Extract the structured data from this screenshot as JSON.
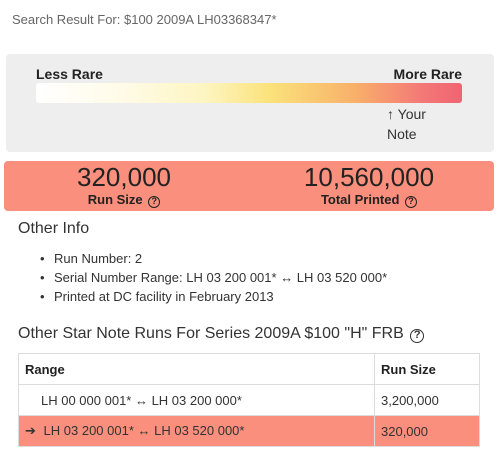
{
  "search": {
    "label": "Search Result For: $100 2009A LH03368347*"
  },
  "rarity": {
    "less_label": "Less Rare",
    "more_label": "More Rare",
    "your_note_arrow": "↑",
    "your_note_line1": "Your",
    "your_note_line2": "Note"
  },
  "stats": {
    "run_size_value": "320,000",
    "run_size_label": "Run Size",
    "total_printed_value": "10,560,000",
    "total_printed_label": "Total Printed",
    "help_glyph": "?"
  },
  "other_info": {
    "title": "Other Info",
    "items": [
      "Run Number: 2",
      "Serial Number Range: LH 03 200 001* ↔ LH 03 520 000*",
      "Printed at DC facility in February 2013"
    ]
  },
  "runs": {
    "title": "Other Star Note Runs For Series 2009A $100 \"H\" FRB",
    "help_glyph": "?",
    "headers": {
      "range": "Range",
      "run_size": "Run Size"
    },
    "current_marker": "➔",
    "rows": [
      {
        "range": "LH 00 000 001* ↔ LH 03 200 000*",
        "run_size": "3,200,000"
      },
      {
        "range": "LH 03 200 001* ↔ LH 03 520 000*",
        "run_size": "320,000"
      }
    ]
  },
  "colors": {
    "highlight": "#f98f7c",
    "panel": "#eeeeee"
  }
}
